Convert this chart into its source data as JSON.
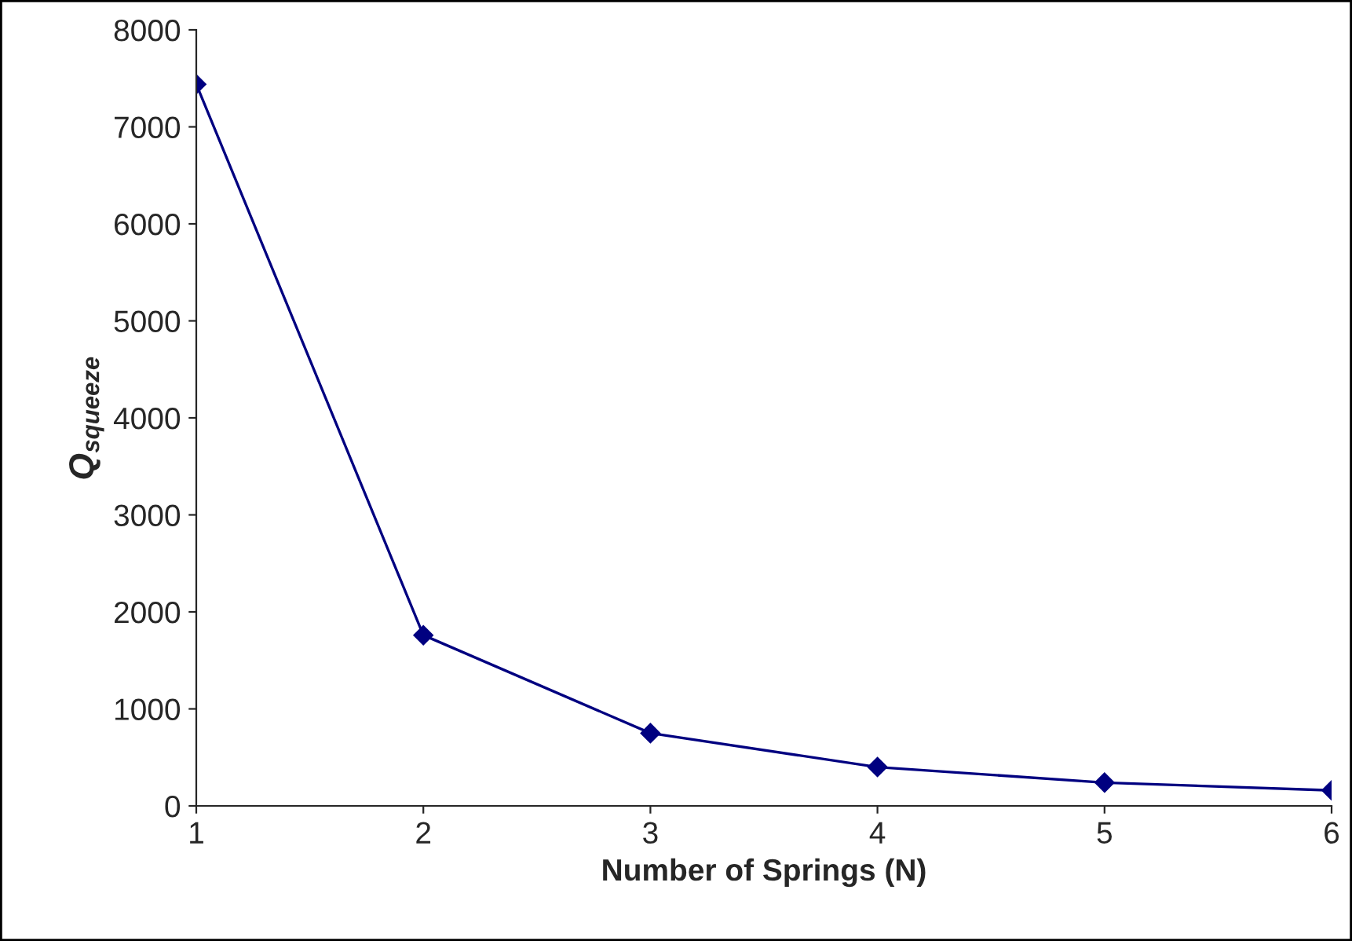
{
  "chart_data": {
    "type": "line",
    "xlabel": "Number of Springs (N)",
    "ylabel": "Q$_{squeeze}$",
    "x": [
      1,
      2,
      3,
      4,
      5,
      6
    ],
    "series": [
      {
        "color": "#000080",
        "values": [
          7440,
          1760,
          750,
          400,
          240,
          160
        ]
      }
    ],
    "xlim": [
      1,
      6
    ],
    "xticks": [
      1,
      2,
      3,
      4,
      5,
      6
    ],
    "ylim": [
      0,
      8000
    ],
    "yticks": [
      0,
      1000,
      2000,
      3000,
      4000,
      5000,
      6000,
      7000,
      8000
    ],
    "grid": false,
    "legend": false,
    "marker": "diamond",
    "line_style": "solid"
  }
}
